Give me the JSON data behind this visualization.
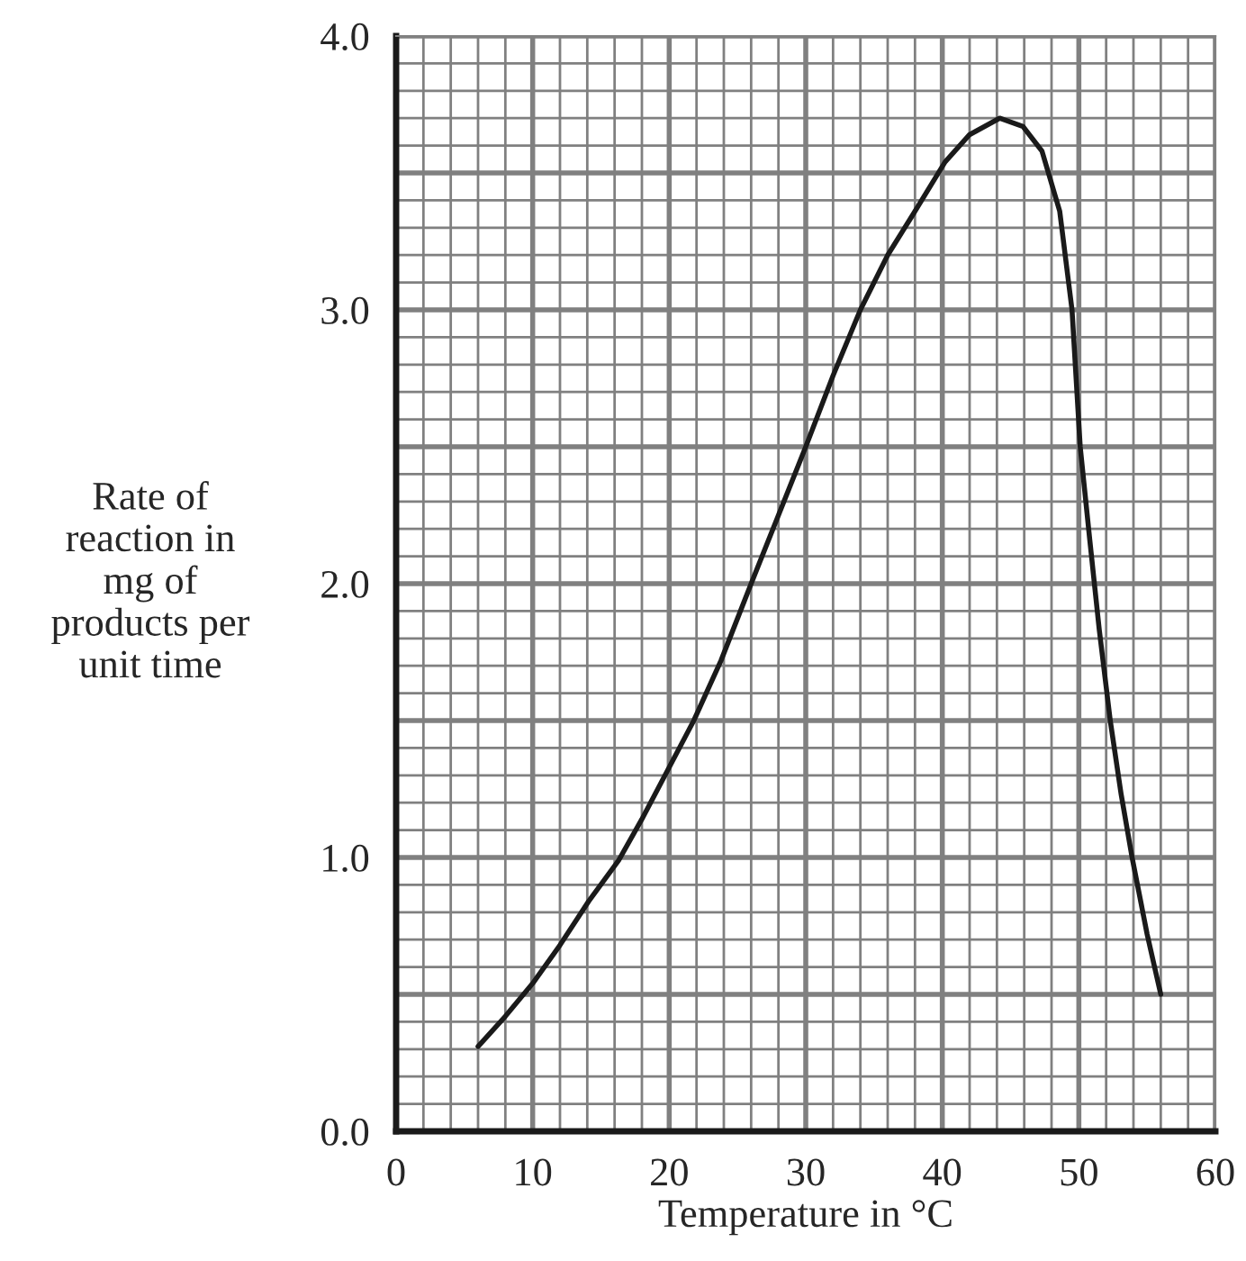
{
  "chart_data": {
    "type": "line",
    "xlabel": "Temperature in °C",
    "ylabel": "Rate of\nreaction in\nmg of\nproducts per\nunit time",
    "series": [
      {
        "color": "#1a1a1a",
        "x": [
          6,
          8,
          10,
          12,
          14.1,
          16.3,
          18,
          19.9,
          21.8,
          23.8,
          26,
          28,
          30,
          32,
          34,
          36,
          38,
          40.2,
          42,
          44.2,
          45.9,
          47.3,
          48.6,
          49.5,
          50.1,
          50.8,
          51.5,
          52.3,
          53.1,
          53.9,
          55,
          56
        ],
        "values": [
          0.31,
          0.42,
          0.54,
          0.68,
          0.84,
          0.99,
          1.14,
          1.32,
          1.5,
          1.72,
          2.0,
          2.25,
          2.5,
          2.76,
          3.0,
          3.2,
          3.36,
          3.54,
          3.64,
          3.7,
          3.67,
          3.58,
          3.36,
          3.0,
          2.5,
          2.16,
          1.83,
          1.5,
          1.23,
          1.0,
          0.72,
          0.5
        ]
      }
    ],
    "xlim": [
      0,
      60
    ],
    "xticks": [
      0,
      10,
      20,
      30,
      40,
      50,
      60
    ],
    "ylim": [
      0,
      4
    ],
    "yticks": [
      {
        "value": 0,
        "label": "0.0"
      },
      {
        "value": 1,
        "label": "1.0"
      },
      {
        "value": 2,
        "label": "2.0"
      },
      {
        "value": 3,
        "label": "3.0"
      },
      {
        "value": 4,
        "label": "4.0"
      }
    ],
    "grid": true,
    "marker": "none",
    "line_style": "solid"
  }
}
